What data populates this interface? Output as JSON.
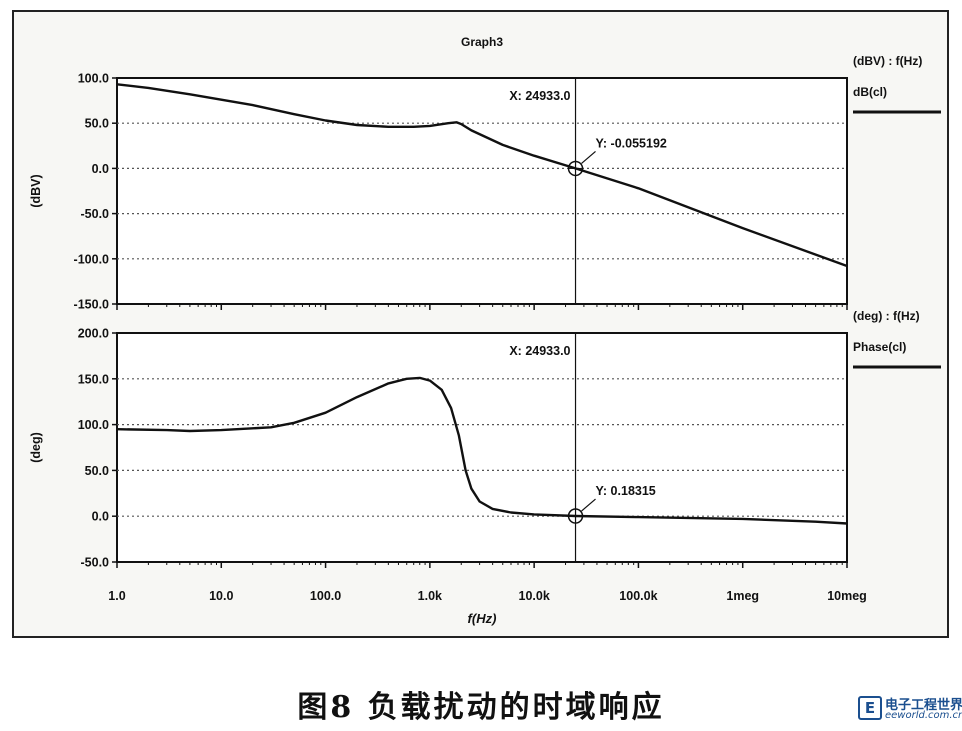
{
  "chart_data": [
    {
      "type": "line",
      "title": "Graph3",
      "xlabel": "f(Hz)",
      "ylabel": "(dBV)",
      "x_scale": "log",
      "xlim": [
        1,
        10000000
      ],
      "ylim": [
        -150,
        100
      ],
      "x_ticks": [
        {
          "value": 1,
          "label": "1.0"
        },
        {
          "value": 10,
          "label": "10.0"
        },
        {
          "value": 100,
          "label": "100.0"
        },
        {
          "value": 1000,
          "label": "1.0k"
        },
        {
          "value": 10000,
          "label": "10.0k"
        },
        {
          "value": 100000,
          "label": "100.0k"
        },
        {
          "value": 1000000,
          "label": "1meg"
        },
        {
          "value": 10000000,
          "label": "10meg"
        }
      ],
      "y_ticks": [
        {
          "value": 100,
          "label": "100.0"
        },
        {
          "value": 50,
          "label": "50.0"
        },
        {
          "value": 0,
          "label": "0.0"
        },
        {
          "value": -50,
          "label": "-50.0"
        },
        {
          "value": -100,
          "label": "-100.0"
        },
        {
          "value": -150,
          "label": "-150.0"
        }
      ],
      "grid": true,
      "legend_header": "(dBV) : f(Hz)",
      "legend_position": "right",
      "series": [
        {
          "name": "dB(cl)",
          "x": [
            1,
            2,
            5,
            10,
            20,
            50,
            100,
            200,
            400,
            700,
            1000,
            1500,
            1800,
            2000,
            2500,
            5000,
            10000,
            24933,
            100000,
            1000000,
            10000000
          ],
          "y": [
            93,
            89,
            82,
            76,
            70,
            60,
            53,
            48,
            46,
            46,
            47,
            50,
            51,
            49,
            42,
            26,
            14,
            0,
            -22,
            -66,
            -108
          ]
        }
      ],
      "cursor": {
        "x_label": "X: 24933.0",
        "y_label": "Y: -0.055192",
        "x": 24933,
        "y": -0.055192
      }
    },
    {
      "type": "line",
      "title": "",
      "xlabel": "f(Hz)",
      "ylabel": "(deg)",
      "x_scale": "log",
      "xlim": [
        1,
        10000000
      ],
      "ylim": [
        -50,
        200
      ],
      "x_ticks": [
        {
          "value": 1,
          "label": "1.0"
        },
        {
          "value": 10,
          "label": "10.0"
        },
        {
          "value": 100,
          "label": "100.0"
        },
        {
          "value": 1000,
          "label": "1.0k"
        },
        {
          "value": 10000,
          "label": "10.0k"
        },
        {
          "value": 100000,
          "label": "100.0k"
        },
        {
          "value": 1000000,
          "label": "1meg"
        },
        {
          "value": 10000000,
          "label": "10meg"
        }
      ],
      "y_ticks": [
        {
          "value": 200,
          "label": "200.0"
        },
        {
          "value": 150,
          "label": "150.0"
        },
        {
          "value": 100,
          "label": "100.0"
        },
        {
          "value": 50,
          "label": "50.0"
        },
        {
          "value": 0,
          "label": "0.0"
        },
        {
          "value": -50,
          "label": "-50.0"
        }
      ],
      "grid": true,
      "legend_header": "(deg) : f(Hz)",
      "legend_position": "right",
      "series": [
        {
          "name": "Phase(cl)",
          "x": [
            1,
            3,
            5,
            10,
            30,
            50,
            100,
            200,
            400,
            600,
            800,
            1000,
            1300,
            1600,
            1900,
            2200,
            2500,
            3000,
            4000,
            6000,
            10000,
            24933,
            100000,
            1000000,
            5000000,
            10000000
          ],
          "y": [
            95,
            94,
            93,
            94,
            97,
            102,
            113,
            130,
            145,
            150,
            151,
            148,
            138,
            118,
            88,
            50,
            30,
            16,
            8,
            4,
            2,
            0.18,
            -1,
            -3,
            -6,
            -8
          ]
        }
      ],
      "cursor": {
        "x_label": "X: 24933.0",
        "y_label": "Y: 0.18315",
        "x": 24933,
        "y": 0.18315
      }
    }
  ],
  "caption": "图8   负载扰动的时域响应",
  "watermark": {
    "name": "电子工程世界",
    "url": "eeworld.com.cn",
    "mark": "E"
  },
  "colors": {
    "trace": "#111111",
    "grid": "#555555",
    "panel": "#ffffff",
    "frame_bg": "#f7f7f4"
  }
}
